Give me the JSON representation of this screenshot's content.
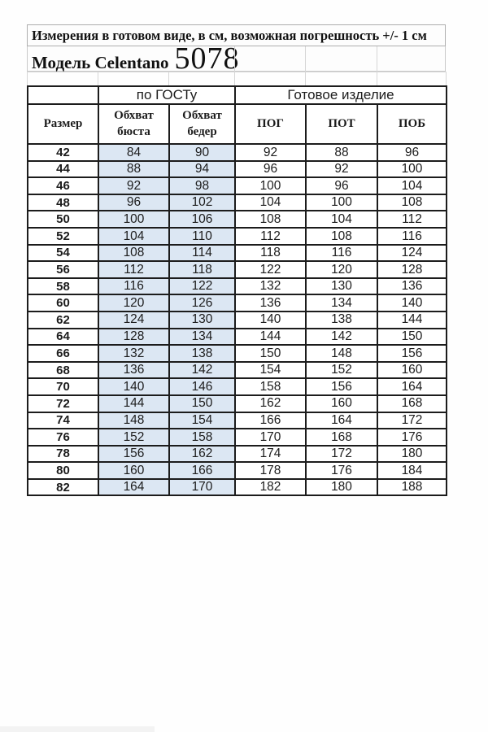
{
  "page": {
    "title": "Измерения в готовом виде, в  см, возможная погрешность +/- 1 см",
    "model_label": "Модель Celentano",
    "model_number": "5078"
  },
  "table": {
    "group_headers": [
      {
        "label": "по ГОСТу",
        "span": 2
      },
      {
        "label": "Готовое изделие",
        "span": 3
      }
    ],
    "columns": [
      "Размер",
      "Обхват бюста",
      "Обхват бедер",
      "ПОГ",
      "ПОТ",
      "ПОБ"
    ],
    "rows": [
      [
        42,
        84,
        90,
        92,
        88,
        96
      ],
      [
        44,
        88,
        94,
        96,
        92,
        100
      ],
      [
        46,
        92,
        98,
        100,
        96,
        104
      ],
      [
        48,
        96,
        102,
        104,
        100,
        108
      ],
      [
        50,
        100,
        106,
        108,
        104,
        112
      ],
      [
        52,
        104,
        110,
        112,
        108,
        116
      ],
      [
        54,
        108,
        114,
        118,
        116,
        124
      ],
      [
        56,
        112,
        118,
        122,
        120,
        128
      ],
      [
        58,
        116,
        122,
        132,
        130,
        136
      ],
      [
        60,
        120,
        126,
        136,
        134,
        140
      ],
      [
        62,
        124,
        130,
        140,
        138,
        144
      ],
      [
        64,
        128,
        134,
        144,
        142,
        150
      ],
      [
        66,
        132,
        138,
        150,
        148,
        156
      ],
      [
        68,
        136,
        142,
        154,
        152,
        160
      ],
      [
        70,
        140,
        146,
        158,
        156,
        164
      ],
      [
        72,
        144,
        150,
        162,
        160,
        168
      ],
      [
        74,
        148,
        154,
        166,
        164,
        172
      ],
      [
        76,
        152,
        158,
        170,
        168,
        176
      ],
      [
        78,
        156,
        162,
        174,
        172,
        180
      ],
      [
        80,
        160,
        166,
        178,
        176,
        184
      ],
      [
        82,
        164,
        170,
        182,
        180,
        188
      ]
    ]
  },
  "colors": {
    "highlight": "#dce7f3",
    "table_border": "#1c1c1c"
  }
}
